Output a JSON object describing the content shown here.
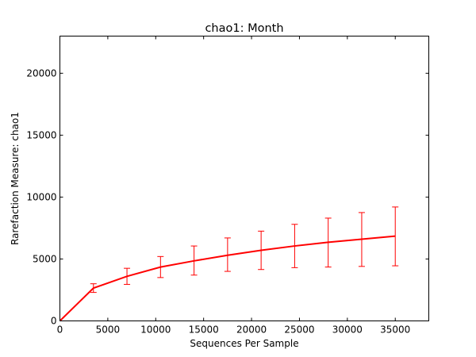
{
  "chart_data": {
    "type": "line",
    "title": "chao1: Month",
    "xlabel": "Sequences Per Sample",
    "ylabel": "Rarefaction Measure: chao1",
    "xlim": [
      0,
      38500
    ],
    "ylim": [
      0,
      23000
    ],
    "xticks": [
      0,
      5000,
      10000,
      15000,
      20000,
      25000,
      30000,
      35000
    ],
    "yticks": [
      0,
      5000,
      10000,
      15000,
      20000
    ],
    "grid": false,
    "series": [
      {
        "color": "#ff0000",
        "x": [
          0,
          3500,
          7000,
          10500,
          14000,
          17500,
          21000,
          24500,
          28000,
          31500,
          35000
        ],
        "y": [
          0,
          2650,
          3600,
          4350,
          4850,
          5300,
          5700,
          6050,
          6350,
          6600,
          6850
        ],
        "error_low": [
          0,
          2300,
          2950,
          3500,
          3700,
          4000,
          4150,
          4300,
          4350,
          4400,
          4450
        ],
        "error_high": [
          0,
          3000,
          4250,
          5200,
          6050,
          6700,
          7250,
          7800,
          8300,
          8750,
          9200
        ]
      }
    ]
  }
}
